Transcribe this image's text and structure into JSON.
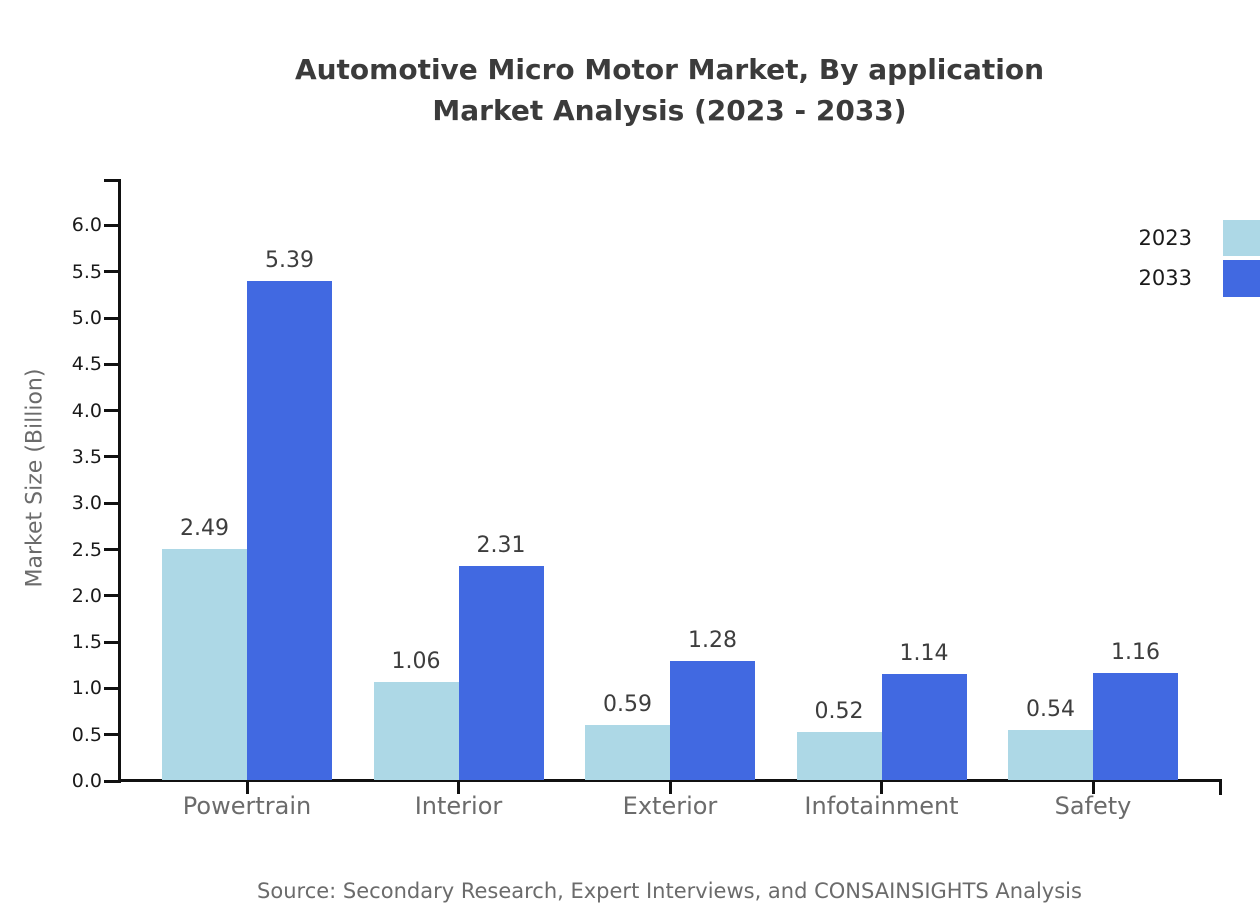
{
  "title": {
    "line1": "Automotive Micro Motor Market, By application",
    "line2": "Market Analysis (2023 - 2033)"
  },
  "source": "Source: Secondary Research, Expert Interviews, and CONSAINSIGHTS Analysis",
  "legend": {
    "items": [
      {
        "label": "2023",
        "color": "#ADD8E6"
      },
      {
        "label": "2033",
        "color": "#4169E1"
      }
    ]
  },
  "colors": {
    "series_2023": "#ADD8E6",
    "series_2033": "#4169E1",
    "axis": "#111111",
    "title_text": "#3b3b3b",
    "tick_text": "#1a1a1a",
    "label_text": "#6b6b6b",
    "value_text": "#3d3d3d",
    "background": "#ffffff"
  },
  "chart_data": {
    "type": "bar",
    "title": "Automotive Micro Motor Market, By application Market Analysis (2023 - 2033)",
    "xlabel": "",
    "ylabel": "Market Size (Billion)",
    "categories": [
      "Powertrain",
      "Interior",
      "Exterior",
      "Infotainment",
      "Safety"
    ],
    "series": [
      {
        "name": "2023",
        "color": "#ADD8E6",
        "values": [
          2.49,
          1.06,
          0.59,
          0.52,
          0.54
        ]
      },
      {
        "name": "2033",
        "color": "#4169E1",
        "values": [
          5.39,
          2.31,
          1.28,
          1.14,
          1.16
        ]
      }
    ],
    "ylim": [
      0.0,
      6.5
    ],
    "yticks": [
      0.0,
      0.5,
      1.0,
      1.5,
      2.0,
      2.5,
      3.0,
      3.5,
      4.0,
      4.5,
      5.0,
      5.5,
      6.0
    ],
    "grid": false,
    "legend_position": "top-right",
    "value_labels": true
  }
}
